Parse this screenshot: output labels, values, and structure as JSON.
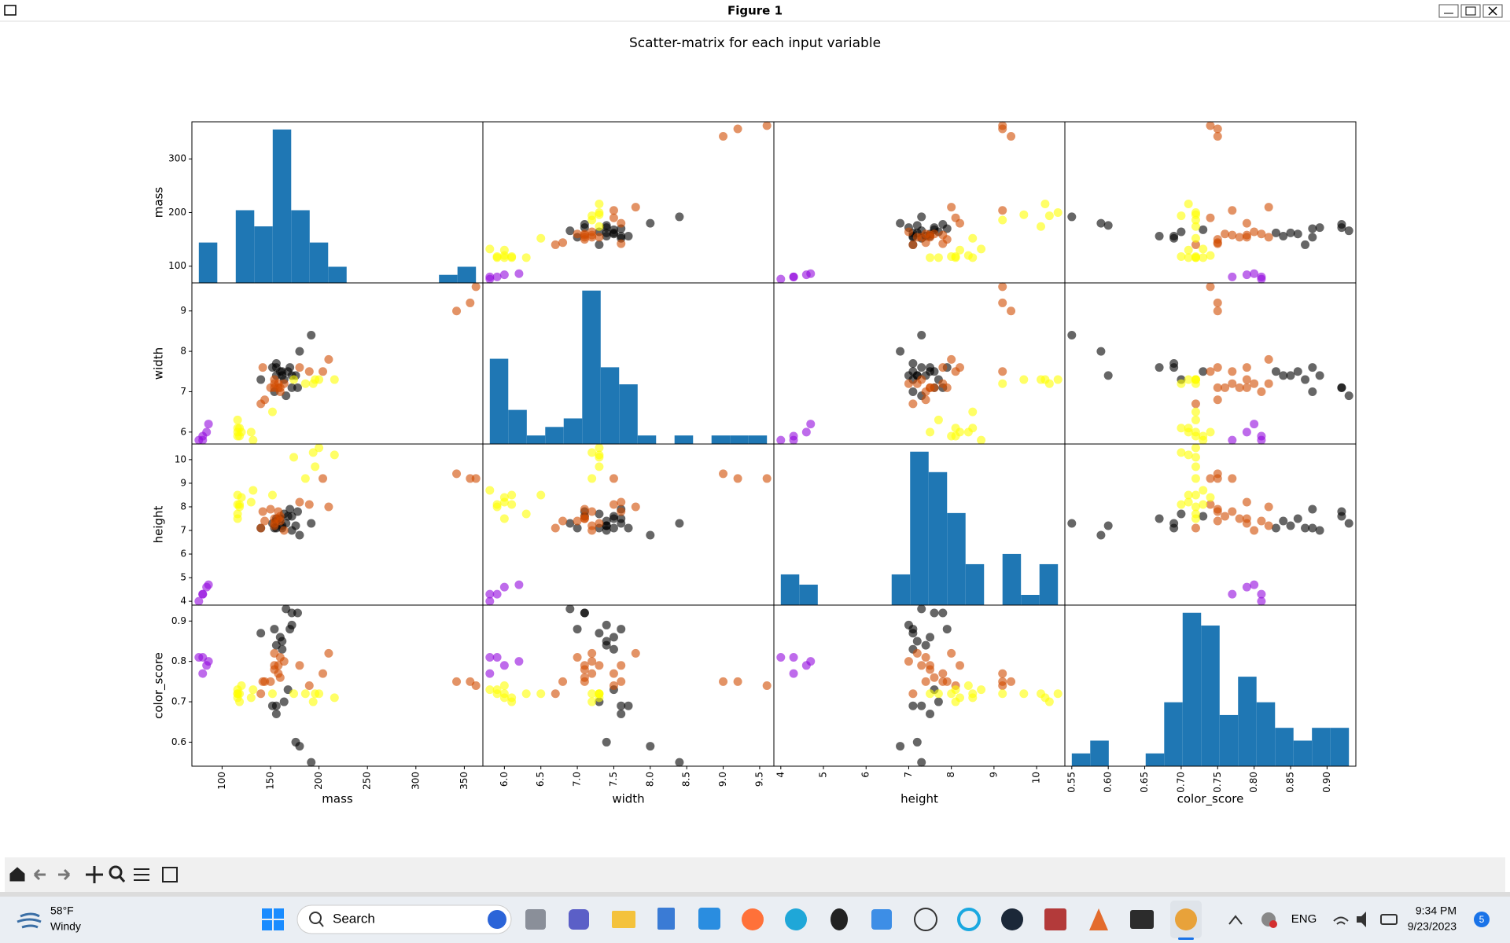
{
  "window": {
    "title": "Figure 1"
  },
  "taskbar": {
    "weather_temp": "58°F",
    "weather_text": "Windy",
    "search": "Search",
    "language": "ENG",
    "time": "9:34 PM",
    "date": "9/23/2023",
    "notifications": "5"
  },
  "chart_data": {
    "type": "scatter_matrix",
    "title": "Scatter-matrix for each input variable",
    "hist_color": "#1f77b4",
    "point_alpha": 0.6,
    "variables": [
      {
        "name": "mass",
        "lim": [
          68.85,
          369.15
        ],
        "xticks": [
          100,
          150,
          200,
          250,
          300,
          350
        ],
        "yticks": [
          100,
          200,
          300
        ],
        "bins": [
          76,
          95.07,
          114.13,
          133.2,
          152.27,
          171.33,
          190.4,
          209.47,
          228.53,
          247.6,
          266.67,
          285.73,
          304.8,
          323.87,
          342.93,
          362
        ],
        "counts": [
          5,
          0,
          9,
          7,
          19,
          9,
          5,
          2,
          0,
          0,
          0,
          0,
          0,
          1,
          2
        ]
      },
      {
        "name": "width",
        "lim": [
          5.705,
          9.695
        ],
        "xticks": [
          {
            "value": 6,
            "label": "6.0"
          },
          6.5,
          {
            "value": 7,
            "label": "7.0"
          },
          7.5,
          {
            "value": 8,
            "label": "8.0"
          },
          8.5,
          {
            "value": 9,
            "label": "9.0"
          },
          9.5
        ],
        "yticks": [
          6,
          7,
          8,
          9
        ],
        "bins": [
          5.8,
          6.053,
          6.307,
          6.56,
          6.813,
          7.067,
          7.32,
          7.573,
          7.827,
          8.08,
          8.333,
          8.587,
          8.84,
          9.093,
          9.347,
          9.6
        ],
        "counts": [
          10,
          4,
          1,
          2,
          3,
          18,
          9,
          7,
          1,
          0,
          1,
          0,
          1,
          1,
          1
        ]
      },
      {
        "name": "height",
        "lim": [
          3.8375,
          10.6625
        ],
        "xticks": [
          4,
          5,
          6,
          7,
          8,
          9,
          10
        ],
        "yticks": [
          4,
          5,
          6,
          7,
          8,
          9,
          10
        ],
        "bins": [
          4,
          4.433,
          4.867,
          5.3,
          5.733,
          6.167,
          6.6,
          7.033,
          7.467,
          7.9,
          8.333,
          8.767,
          9.2,
          9.633,
          10.067,
          10.5
        ],
        "counts": [
          3,
          2,
          0,
          0,
          0,
          0,
          3,
          15,
          13,
          9,
          4,
          0,
          5,
          1,
          4
        ]
      },
      {
        "name": "color_score",
        "lim": [
          0.5405,
          0.9395
        ],
        "xticks": [
          0.55,
          {
            "value": 0.6,
            "label": "0.60"
          },
          0.65,
          {
            "value": 0.7,
            "label": "0.70"
          },
          0.75,
          {
            "value": 0.8,
            "label": "0.80"
          },
          0.85,
          {
            "value": 0.9,
            "label": "0.90"
          }
        ],
        "yticks": [
          0.6,
          0.7,
          0.8,
          0.9
        ],
        "bins": [
          0.55,
          0.5753,
          0.6007,
          0.626,
          0.6513,
          0.6767,
          0.702,
          0.7273,
          0.7527,
          0.778,
          0.8033,
          0.8287,
          0.854,
          0.8793,
          0.9047,
          0.93
        ],
        "counts": [
          1,
          2,
          0,
          0,
          1,
          5,
          12,
          11,
          4,
          7,
          5,
          3,
          2,
          3,
          3
        ]
      }
    ],
    "series": [
      {
        "color": "#000000",
        "mass": [
          192,
          180,
          176,
          178,
          172,
          166,
          172,
          154,
          164,
          152,
          156,
          156,
          168,
          162,
          162,
          160,
          156,
          140,
          170
        ],
        "width": [
          8.4,
          8.0,
          7.4,
          7.1,
          7.4,
          6.9,
          7.1,
          7.0,
          7.3,
          7.6,
          7.7,
          7.6,
          7.5,
          7.5,
          7.4,
          7.5,
          7.4,
          7.3,
          7.6
        ],
        "height": [
          7.3,
          6.8,
          7.2,
          7.8,
          7.0,
          7.3,
          7.6,
          7.1,
          7.7,
          7.3,
          7.1,
          7.5,
          7.6,
          7.1,
          7.2,
          7.5,
          7.4,
          7.1,
          7.9
        ],
        "color_score": [
          0.55,
          0.59,
          0.6,
          0.92,
          0.89,
          0.93,
          0.92,
          0.88,
          0.7,
          0.69,
          0.69,
          0.67,
          0.73,
          0.83,
          0.85,
          0.86,
          0.84,
          0.87,
          0.88
        ]
      },
      {
        "color": "#9309dd",
        "mass": [
          86,
          84,
          80,
          80,
          76
        ],
        "width": [
          6.2,
          6.0,
          5.8,
          5.9,
          5.8
        ],
        "height": [
          4.7,
          4.6,
          4.3,
          4.3,
          4.0
        ],
        "color_score": [
          0.8,
          0.79,
          0.77,
          0.81,
          0.81
        ]
      },
      {
        "color": "#d04b00",
        "mass": [
          342,
          356,
          362,
          204,
          140,
          160,
          158,
          210,
          164,
          190,
          142,
          150,
          160,
          154,
          158,
          144,
          154,
          180,
          154
        ],
        "width": [
          9.0,
          9.2,
          9.6,
          7.5,
          6.7,
          7.0,
          7.1,
          7.8,
          7.2,
          7.5,
          7.6,
          7.1,
          7.1,
          7.3,
          7.2,
          6.8,
          7.1,
          7.6,
          7.2
        ],
        "height": [
          9.4,
          9.2,
          9.2,
          9.2,
          7.1,
          7.4,
          7.5,
          8.0,
          7.0,
          8.1,
          7.8,
          7.9,
          7.6,
          7.3,
          7.8,
          7.4,
          7.5,
          8.2,
          7.2
        ],
        "color_score": [
          0.75,
          0.75,
          0.74,
          0.77,
          0.72,
          0.81,
          0.79,
          0.82,
          0.8,
          0.74,
          0.75,
          0.75,
          0.76,
          0.79,
          0.77,
          0.75,
          0.78,
          0.79,
          0.82
        ]
      },
      {
        "color": "#ffff00",
        "mass": [
          194,
          200,
          186,
          216,
          196,
          174,
          132,
          130,
          116,
          118,
          120,
          116,
          116,
          116,
          152,
          118
        ],
        "width": [
          7.2,
          7.3,
          7.2,
          7.3,
          7.3,
          7.3,
          5.8,
          6.0,
          6.0,
          5.9,
          6.0,
          6.1,
          6.3,
          5.9,
          6.5,
          6.1
        ],
        "height": [
          10.3,
          10.5,
          9.2,
          10.2,
          9.7,
          10.1,
          8.7,
          8.2,
          7.5,
          8.0,
          8.4,
          8.5,
          7.7,
          8.1,
          8.5,
          8.1
        ],
        "color_score": [
          0.7,
          0.72,
          0.72,
          0.71,
          0.72,
          0.72,
          0.73,
          0.71,
          0.72,
          0.72,
          0.74,
          0.71,
          0.72,
          0.73,
          0.72,
          0.7
        ]
      }
    ]
  }
}
